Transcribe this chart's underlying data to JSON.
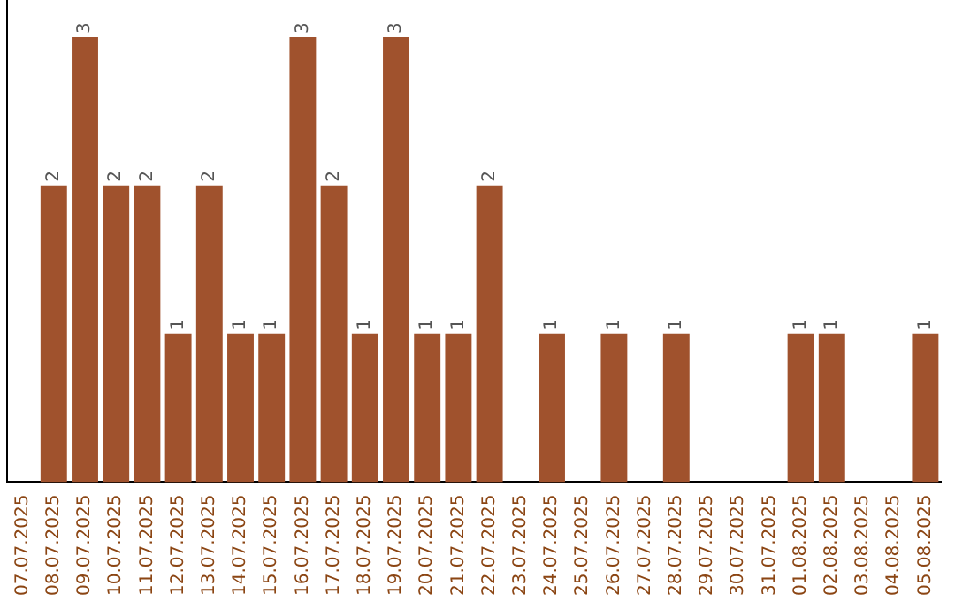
{
  "chart_data": {
    "type": "bar",
    "categories": [
      "07.07.2025",
      "08.07.2025",
      "09.07.2025",
      "10.07.2025",
      "11.07.2025",
      "12.07.2025",
      "13.07.2025",
      "14.07.2025",
      "15.07.2025",
      "16.07.2025",
      "17.07.2025",
      "18.07.2025",
      "19.07.2025",
      "20.07.2025",
      "21.07.2025",
      "22.07.2025",
      "23.07.2025",
      "24.07.2025",
      "25.07.2025",
      "26.07.2025",
      "27.07.2025",
      "28.07.2025",
      "29.07.2025",
      "30.07.2025",
      "31.07.2025",
      "01.08.2025",
      "02.08.2025",
      "03.08.2025",
      "04.08.2025",
      "05.08.2025"
    ],
    "values": [
      null,
      2,
      3,
      2,
      2,
      1,
      2,
      1,
      1,
      3,
      2,
      1,
      3,
      1,
      1,
      2,
      null,
      1,
      null,
      1,
      null,
      1,
      null,
      null,
      null,
      1,
      1,
      null,
      null,
      1
    ],
    "color": "#a0522d",
    "ylim": [
      0,
      3.25
    ],
    "data_labels": true,
    "grid": false,
    "legend": false,
    "tick_labels": "x"
  }
}
